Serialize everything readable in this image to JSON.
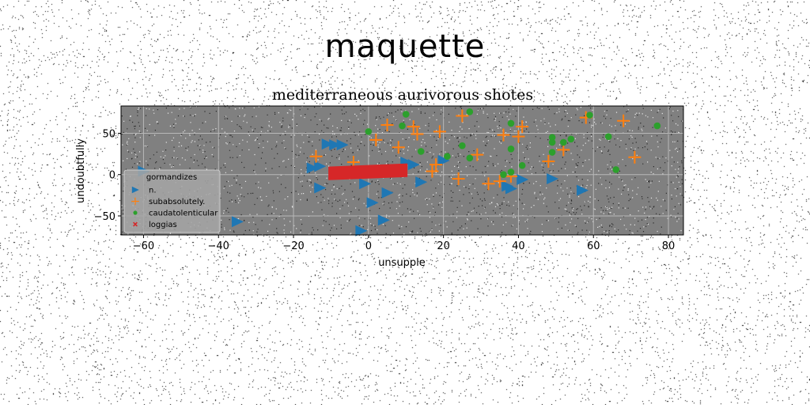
{
  "figure": {
    "suptitle": "maquette"
  },
  "colors": {
    "axes_bg": "#808080",
    "n.": "#1f77b4",
    "subabsolutely.": "#ff7f0e",
    "caudatolenticular": "#2ca02c",
    "loggias": "#d62728"
  },
  "chart_data": {
    "type": "scatter",
    "title": "mediterraneous aurivorous shotes",
    "xlabel": "unsupple",
    "ylabel": "undoubtfully",
    "xlim": [
      -66,
      84
    ],
    "ylim": [
      -73,
      83
    ],
    "xticks": [
      -60,
      -40,
      -20,
      0,
      20,
      40,
      60,
      80
    ],
    "yticks": [
      -50,
      0,
      50
    ],
    "grid": true,
    "legend": {
      "title": "gormandizes",
      "position": "lower-left"
    },
    "series": [
      {
        "name": "n.",
        "marker": "triangle-right",
        "points": [
          [
            -60,
            4
          ],
          [
            -35,
            -57
          ],
          [
            -15,
            8
          ],
          [
            -13,
            10
          ],
          [
            -13,
            -16
          ],
          [
            -11,
            37
          ],
          [
            -9,
            36
          ],
          [
            -7,
            36
          ],
          [
            -2,
            -68
          ],
          [
            -1,
            -11
          ],
          [
            1,
            -34
          ],
          [
            4,
            -55
          ],
          [
            5,
            -22
          ],
          [
            10,
            15
          ],
          [
            12,
            12
          ],
          [
            14,
            -9
          ],
          [
            20,
            17
          ],
          [
            37,
            -14
          ],
          [
            38,
            -17
          ],
          [
            41,
            -6
          ],
          [
            49,
            -5
          ],
          [
            57,
            -19
          ]
        ]
      },
      {
        "name": "subabsolutely.",
        "marker": "plus",
        "points": [
          [
            -14,
            22
          ],
          [
            -4,
            15
          ],
          [
            2,
            42
          ],
          [
            5,
            60
          ],
          [
            8,
            33
          ],
          [
            12,
            58
          ],
          [
            13,
            49
          ],
          [
            19,
            52
          ],
          [
            17,
            4
          ],
          [
            18,
            12
          ],
          [
            25,
            71
          ],
          [
            24,
            -5
          ],
          [
            29,
            24
          ],
          [
            32,
            -11
          ],
          [
            35,
            -8
          ],
          [
            36,
            48
          ],
          [
            38,
            -2
          ],
          [
            40,
            46
          ],
          [
            41,
            58
          ],
          [
            48,
            16
          ],
          [
            52,
            30
          ],
          [
            58,
            69
          ],
          [
            68,
            65
          ],
          [
            71,
            21
          ]
        ]
      },
      {
        "name": "caudatolenticular",
        "marker": "circle",
        "points": [
          [
            0,
            52
          ],
          [
            9,
            59
          ],
          [
            10,
            73
          ],
          [
            14,
            28
          ],
          [
            21,
            22
          ],
          [
            25,
            35
          ],
          [
            27,
            76
          ],
          [
            27,
            20
          ],
          [
            36,
            0
          ],
          [
            38,
            31
          ],
          [
            38,
            3
          ],
          [
            38,
            62
          ],
          [
            41,
            11
          ],
          [
            49,
            27
          ],
          [
            49,
            45
          ],
          [
            49,
            39
          ],
          [
            52,
            39
          ],
          [
            54,
            43
          ],
          [
            59,
            72
          ],
          [
            64,
            46
          ],
          [
            66,
            6
          ],
          [
            77,
            59
          ]
        ]
      },
      {
        "name": "loggias",
        "marker": "x",
        "segment": {
          "x": [
            -10.7,
            10.4
          ],
          "y_start": [
            9.7,
            13.5
          ],
          "y_end": [
            -6.7,
            -2.9
          ]
        }
      }
    ]
  }
}
